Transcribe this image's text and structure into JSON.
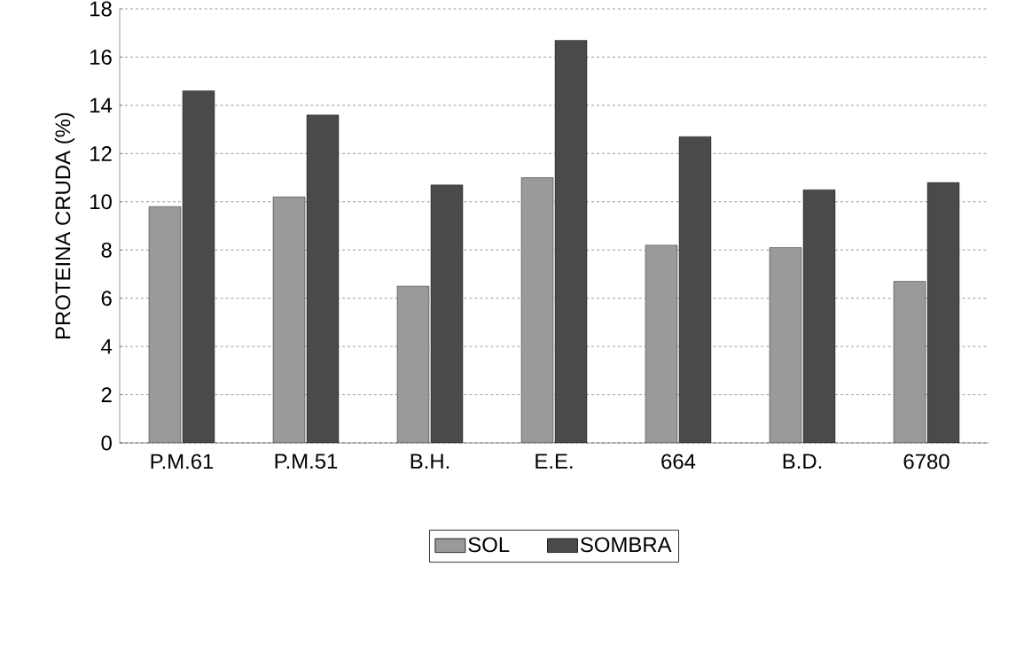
{
  "chart_data": {
    "type": "bar",
    "ylabel": "PROTEINA CRUDA (%)",
    "categories": [
      "P.M.61",
      "P.M.51",
      "B.H.",
      "E.E.",
      "664",
      "B.D.",
      "6780"
    ],
    "series": [
      {
        "name": "SOL",
        "color": "#9a9a9a",
        "values": [
          9.8,
          10.2,
          6.5,
          11,
          8.2,
          8.1,
          6.7
        ]
      },
      {
        "name": "SOMBRA",
        "color": "#4a4a4a",
        "values": [
          14.6,
          13.6,
          10.7,
          16.7,
          12.7,
          10.5,
          10.8
        ]
      }
    ],
    "ylim": [
      0,
      18
    ],
    "yticks": [
      0,
      2,
      4,
      6,
      8,
      10,
      12,
      14,
      16,
      18
    ],
    "grid": "y",
    "legend": "bottom"
  }
}
